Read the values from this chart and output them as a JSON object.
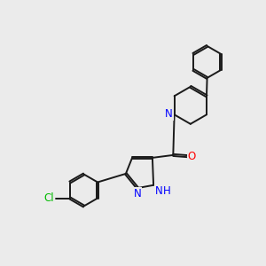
{
  "bg_color": "#ebebeb",
  "bond_color": "#1a1a1a",
  "N_color": "#0000ff",
  "O_color": "#ff0000",
  "Cl_color": "#00bb00",
  "lw": 1.4,
  "dbo": 0.035,
  "figsize": [
    3.0,
    3.0
  ],
  "dpi": 100,
  "xlim": [
    0,
    10
  ],
  "ylim": [
    0,
    10
  ],
  "fontsize": 8.5
}
